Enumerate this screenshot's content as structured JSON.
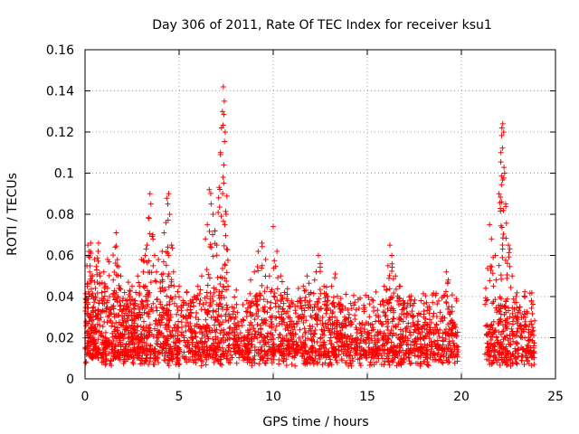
{
  "chart_data": {
    "type": "scatter",
    "title": "Day 306 of 2011, Rate Of TEC Index for receiver ksu1",
    "xlabel": "GPS time / hours",
    "ylabel": "ROTI / TECUs",
    "xlim": [
      0,
      25
    ],
    "ylim": [
      0,
      0.16
    ],
    "xticks": [
      0,
      5,
      10,
      15,
      20,
      25
    ],
    "xtick_labels": [
      "0",
      "5",
      "10",
      "15",
      "20",
      "25"
    ],
    "yticks": [
      0,
      0.02,
      0.04,
      0.06,
      0.08,
      0.1,
      0.12,
      0.14,
      0.16
    ],
    "ytick_labels": [
      "0",
      "0.02",
      "0.04",
      "0.06",
      "0.08",
      "0.1",
      "0.12",
      "0.14",
      "0.16"
    ],
    "grid": true,
    "marker": "plus",
    "colors": {
      "points": "#ff0000",
      "grid": "#a0a0a0",
      "axes": "#000000"
    },
    "series": [
      {
        "points": [
          [
            0.05,
            0.028
          ],
          [
            0.1,
            0.055
          ],
          [
            0.12,
            0.045
          ],
          [
            0.15,
            0.065
          ],
          [
            0.2,
            0.062
          ],
          [
            0.25,
            0.052
          ],
          [
            0.3,
            0.066
          ],
          [
            0.35,
            0.04
          ],
          [
            0.4,
            0.05
          ],
          [
            0.45,
            0.035
          ],
          [
            0.5,
            0.058
          ],
          [
            0.55,
            0.044
          ],
          [
            0.6,
            0.03
          ],
          [
            0.65,
            0.047
          ],
          [
            0.7,
            0.062
          ],
          [
            0.72,
            0.066
          ],
          [
            0.8,
            0.05
          ],
          [
            0.9,
            0.038
          ],
          [
            1.0,
            0.052
          ],
          [
            1.1,
            0.045
          ],
          [
            1.2,
            0.058
          ],
          [
            1.3,
            0.04
          ],
          [
            1.4,
            0.035
          ],
          [
            1.5,
            0.048
          ],
          [
            1.6,
            0.064
          ],
          [
            1.65,
            0.071
          ],
          [
            1.7,
            0.055
          ],
          [
            1.8,
            0.044
          ],
          [
            1.9,
            0.05
          ],
          [
            2.0,
            0.038
          ],
          [
            2.1,
            0.042
          ],
          [
            2.2,
            0.035
          ],
          [
            2.3,
            0.047
          ],
          [
            2.4,
            0.04
          ],
          [
            2.5,
            0.045
          ],
          [
            2.6,
            0.038
          ],
          [
            2.7,
            0.042
          ],
          [
            2.8,
            0.05
          ],
          [
            2.9,
            0.045
          ],
          [
            3.0,
            0.058
          ],
          [
            3.1,
            0.052
          ],
          [
            3.2,
            0.06
          ],
          [
            3.3,
            0.065
          ],
          [
            3.4,
            0.078
          ],
          [
            3.45,
            0.09
          ],
          [
            3.5,
            0.085
          ],
          [
            3.6,
            0.07
          ],
          [
            3.7,
            0.06
          ],
          [
            3.8,
            0.052
          ],
          [
            3.9,
            0.058
          ],
          [
            4.0,
            0.047
          ],
          [
            4.1,
            0.062
          ],
          [
            4.2,
            0.071
          ],
          [
            4.3,
            0.076
          ],
          [
            4.4,
            0.085
          ],
          [
            4.45,
            0.09
          ],
          [
            4.5,
            0.08
          ],
          [
            4.6,
            0.065
          ],
          [
            4.7,
            0.052
          ],
          [
            4.8,
            0.04
          ],
          [
            5.0,
            0.045
          ],
          [
            5.2,
            0.038
          ],
          [
            5.4,
            0.042
          ],
          [
            5.6,
            0.035
          ],
          [
            5.8,
            0.04
          ],
          [
            6.0,
            0.045
          ],
          [
            6.2,
            0.05
          ],
          [
            6.4,
            0.068
          ],
          [
            6.5,
            0.075
          ],
          [
            6.6,
            0.092
          ],
          [
            6.7,
            0.085
          ],
          [
            6.8,
            0.08
          ],
          [
            6.9,
            0.072
          ],
          [
            7.0,
            0.065
          ],
          [
            7.1,
            0.088
          ],
          [
            7.2,
            0.11
          ],
          [
            7.25,
            0.122
          ],
          [
            7.3,
            0.13
          ],
          [
            7.35,
            0.142
          ],
          [
            7.4,
            0.135
          ],
          [
            7.45,
            0.12
          ],
          [
            7.5,
            0.08
          ],
          [
            7.6,
            0.045
          ],
          [
            7.8,
            0.035
          ],
          [
            8.0,
            0.03
          ],
          [
            8.3,
            0.028
          ],
          [
            8.6,
            0.038
          ],
          [
            8.8,
            0.048
          ],
          [
            9.0,
            0.052
          ],
          [
            9.2,
            0.062
          ],
          [
            9.4,
            0.066
          ],
          [
            9.6,
            0.058
          ],
          [
            9.8,
            0.05
          ],
          [
            10.0,
            0.074
          ],
          [
            10.2,
            0.062
          ],
          [
            10.4,
            0.05
          ],
          [
            10.6,
            0.042
          ],
          [
            10.8,
            0.03
          ],
          [
            11.0,
            0.028
          ],
          [
            11.2,
            0.032
          ],
          [
            11.4,
            0.038
          ],
          [
            11.6,
            0.045
          ],
          [
            11.8,
            0.05
          ],
          [
            12.0,
            0.042
          ],
          [
            12.2,
            0.048
          ],
          [
            12.4,
            0.06
          ],
          [
            12.5,
            0.056
          ],
          [
            12.7,
            0.045
          ],
          [
            12.9,
            0.04
          ],
          [
            13.1,
            0.045
          ],
          [
            13.3,
            0.051
          ],
          [
            13.5,
            0.035
          ],
          [
            13.8,
            0.03
          ],
          [
            14.1,
            0.028
          ],
          [
            14.4,
            0.025
          ],
          [
            14.7,
            0.022
          ],
          [
            15.0,
            0.02
          ],
          [
            15.3,
            0.025
          ],
          [
            15.6,
            0.03
          ],
          [
            15.9,
            0.045
          ],
          [
            16.1,
            0.055
          ],
          [
            16.2,
            0.065
          ],
          [
            16.3,
            0.06
          ],
          [
            16.5,
            0.05
          ],
          [
            16.7,
            0.045
          ],
          [
            16.9,
            0.038
          ],
          [
            17.1,
            0.032
          ],
          [
            17.4,
            0.03
          ],
          [
            17.7,
            0.028
          ],
          [
            18.0,
            0.03
          ],
          [
            18.3,
            0.035
          ],
          [
            18.6,
            0.025
          ],
          [
            18.9,
            0.028
          ],
          [
            19.2,
            0.052
          ],
          [
            19.3,
            0.048
          ],
          [
            19.5,
            0.035
          ],
          [
            19.7,
            0.025
          ],
          [
            21.3,
            0.044
          ],
          [
            21.5,
            0.075
          ],
          [
            21.6,
            0.068
          ],
          [
            21.8,
            0.06
          ],
          [
            22.0,
            0.09
          ],
          [
            22.1,
            0.11
          ],
          [
            22.15,
            0.122
          ],
          [
            22.2,
            0.124
          ],
          [
            22.25,
            0.12
          ],
          [
            22.3,
            0.1
          ],
          [
            22.35,
            0.085
          ],
          [
            22.5,
            0.065
          ],
          [
            22.7,
            0.05
          ],
          [
            22.9,
            0.04
          ],
          [
            23.1,
            0.035
          ],
          [
            23.3,
            0.03
          ],
          [
            23.5,
            0.032
          ],
          [
            23.7,
            0.028
          ],
          [
            23.8,
            0.025
          ]
        ],
        "band": {
          "description_free": true,
          "x_range": [
            0,
            23.9
          ],
          "gaps": [
            [
              19.8,
              21.3
            ]
          ],
          "y_floor": [
            0.006,
            0.015
          ],
          "y_bulk_top": 0.03,
          "estimated_count": 2400
        }
      }
    ]
  }
}
